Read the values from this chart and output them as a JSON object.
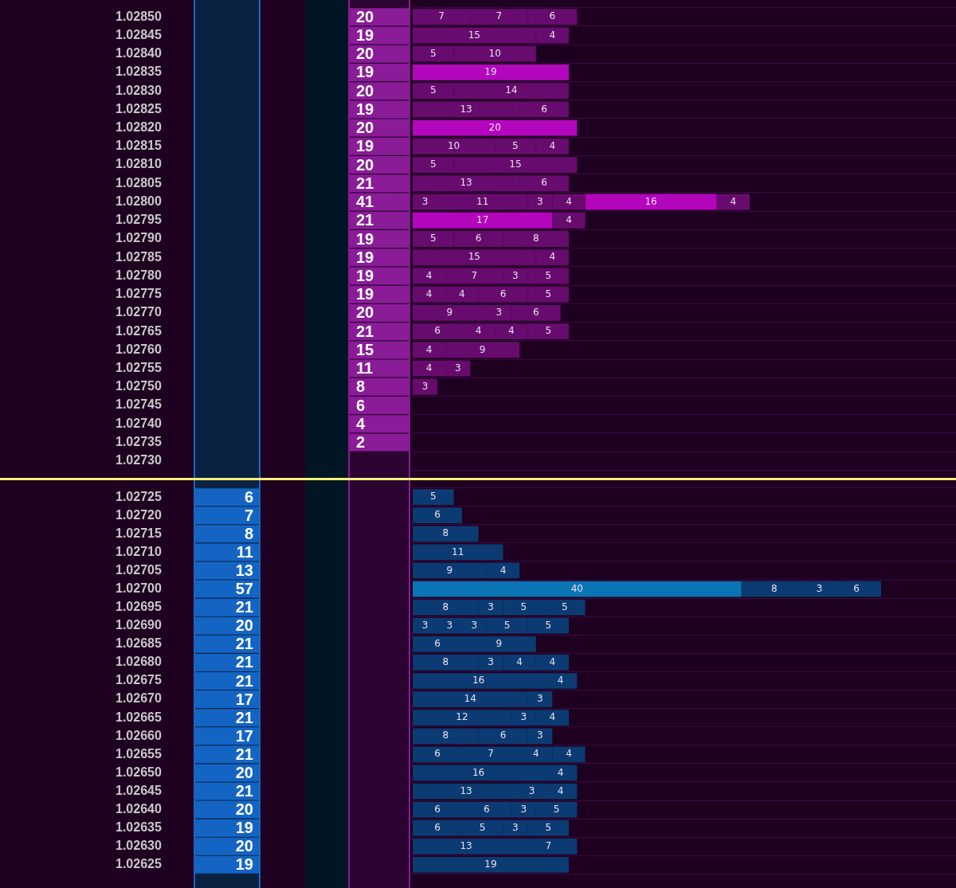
{
  "chart_data": [
    {
      "type": "bar",
      "orientation": "horizontal",
      "stacked": true,
      "data_labels": true,
      "grid": true,
      "categories": [
        "1.02850",
        "1.02845",
        "1.02840",
        "1.02835",
        "1.02830",
        "1.02825",
        "1.02820",
        "1.02815",
        "1.02810",
        "1.02805",
        "1.02800",
        "1.02795",
        "1.02790",
        "1.02785",
        "1.02780",
        "1.02775",
        "1.02770",
        "1.02765",
        "1.02760",
        "1.02755",
        "1.02750",
        "1.02745",
        "1.02740",
        "1.02735",
        "1.02730"
      ],
      "annotations": [
        "20",
        "19",
        "20",
        "19",
        "20",
        "19",
        "20",
        "19",
        "20",
        "21",
        "41",
        "21",
        "19",
        "19",
        "19",
        "19",
        "20",
        "21",
        "15",
        "11",
        "8",
        "6",
        "4",
        "2"
      ],
      "series": [
        {
          "colors": [
            "#680b6e",
            "#680b6e",
            "#680b6e",
            "#b306bd",
            "#680b6e",
            "#680b6e",
            "#b306bd",
            "#680b6e",
            "#680b6e",
            "#680b6e",
            "#680b6e",
            "#b306bd",
            "#680b6e",
            "#680b6e",
            "#680b6e",
            "#680b6e",
            "#680b6e",
            "#680b6e",
            "#680b6e",
            "#680b6e",
            "#680b6e",
            null,
            null,
            null,
            null
          ],
          "values": [
            7,
            15,
            5,
            19,
            5,
            13,
            20,
            10,
            5,
            13,
            3,
            17,
            5,
            15,
            4,
            4,
            9,
            6,
            4,
            4,
            3,
            null,
            null,
            null,
            null
          ]
        },
        {
          "color": "#680b6e",
          "values": [
            7,
            4,
            10,
            null,
            14,
            6,
            null,
            5,
            15,
            6,
            11,
            4,
            6,
            4,
            7,
            4,
            3,
            4,
            9,
            3,
            null,
            null,
            null,
            null,
            null
          ]
        },
        {
          "color": "#680b6e",
          "values": [
            6,
            null,
            null,
            null,
            null,
            null,
            null,
            4,
            null,
            null,
            3,
            null,
            8,
            null,
            3,
            6,
            6,
            4,
            null,
            null,
            null,
            null,
            null,
            null,
            null
          ]
        },
        {
          "color": "#680b6e",
          "values": [
            null,
            null,
            null,
            null,
            null,
            null,
            null,
            null,
            null,
            null,
            4,
            null,
            null,
            null,
            5,
            5,
            null,
            5,
            null,
            null,
            null,
            null,
            null,
            null,
            null
          ]
        },
        {
          "color": "#b306bd",
          "values": [
            null,
            null,
            null,
            null,
            null,
            null,
            null,
            null,
            null,
            null,
            16,
            null,
            null,
            null,
            null,
            null,
            null,
            null,
            null,
            null,
            null,
            null,
            null,
            null,
            null
          ]
        },
        {
          "color": "#680b6e",
          "values": [
            null,
            null,
            null,
            null,
            null,
            null,
            null,
            null,
            null,
            null,
            4,
            null,
            null,
            null,
            null,
            null,
            null,
            null,
            null,
            null,
            null,
            null,
            null,
            null,
            null
          ]
        }
      ]
    },
    {
      "type": "bar",
      "orientation": "horizontal",
      "stacked": true,
      "data_labels": true,
      "grid": true,
      "categories": [
        "1.02725",
        "1.02720",
        "1.02715",
        "1.02710",
        "1.02705",
        "1.02700",
        "1.02695",
        "1.02690",
        "1.02685",
        "1.02680",
        "1.02675",
        "1.02670",
        "1.02665",
        "1.02660",
        "1.02655",
        "1.02650",
        "1.02645",
        "1.02640",
        "1.02635",
        "1.02630",
        "1.02625"
      ],
      "annotations": [
        "6",
        "7",
        "8",
        "11",
        "13",
        "57",
        "21",
        "20",
        "21",
        "21",
        "21",
        "17",
        "21",
        "17",
        "21",
        "20",
        "21",
        "20",
        "19",
        "20",
        "19"
      ],
      "series": [
        {
          "colors": [
            "#0b3b72",
            "#0b3b72",
            "#0b3b72",
            "#0b3b72",
            "#0b3b72",
            "#0a74b4",
            "#0b3b72",
            "#0b3b72",
            "#0b3b72",
            "#0b3b72",
            "#0b3b72",
            "#0b3b72",
            "#0b3b72",
            "#0b3b72",
            "#0b3b72",
            "#0b3b72",
            "#0b3b72",
            "#0b3b72",
            "#0b3b72",
            "#0b3b72",
            "#0b3b72"
          ],
          "values": [
            5,
            6,
            8,
            11,
            9,
            40,
            8,
            3,
            6,
            8,
            16,
            14,
            12,
            8,
            6,
            16,
            13,
            6,
            6,
            13,
            19
          ]
        },
        {
          "color": "#0b3b72",
          "values": [
            null,
            null,
            null,
            null,
            4,
            8,
            3,
            3,
            9,
            3,
            4,
            3,
            3,
            6,
            7,
            4,
            3,
            6,
            5,
            7,
            null
          ]
        },
        {
          "color": "#0b3b72",
          "values": [
            null,
            null,
            null,
            null,
            null,
            3,
            5,
            3,
            null,
            4,
            null,
            null,
            4,
            3,
            4,
            null,
            4,
            3,
            3,
            null,
            null
          ]
        },
        {
          "color": "#0b3b72",
          "values": [
            null,
            null,
            null,
            null,
            null,
            6,
            5,
            5,
            null,
            4,
            null,
            null,
            null,
            null,
            4,
            null,
            null,
            5,
            5,
            null,
            null
          ]
        },
        {
          "color": "#0b3b72",
          "values": [
            null,
            null,
            null,
            null,
            null,
            null,
            null,
            5,
            null,
            null,
            null,
            null,
            null,
            null,
            null,
            null,
            null,
            null,
            null,
            null,
            null
          ]
        }
      ]
    }
  ]
}
